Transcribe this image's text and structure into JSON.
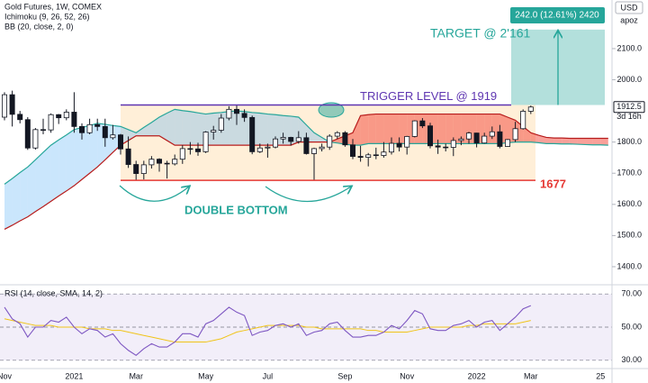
{
  "chart_data": {
    "type": "candlestick",
    "title": "Gold Futures, 1W, COMEX",
    "indicators": [
      "Ichimoku (9, 26, 52, 26)",
      "BB (20, close, 2, 0)"
    ],
    "currency": "USD",
    "scale_mode": "apoz",
    "categories": [
      "Nov",
      null,
      null,
      null,
      null,
      null,
      null,
      null,
      null,
      "2021",
      null,
      null,
      null,
      null,
      null,
      null,
      null,
      "Mar",
      null,
      null,
      null,
      null,
      null,
      null,
      null,
      null,
      "May",
      null,
      null,
      null,
      null,
      null,
      null,
      null,
      "Jul",
      null,
      null,
      null,
      null,
      null,
      null,
      null,
      null,
      null,
      "Sep",
      null,
      null,
      null,
      null,
      null,
      null,
      null,
      "Nov",
      null,
      null,
      null,
      null,
      null,
      null,
      null,
      null,
      "2022",
      null,
      null,
      null,
      null,
      null,
      null,
      "Mar",
      null,
      null,
      null,
      null,
      null,
      null,
      null,
      null,
      "25",
      null
    ],
    "open": [
      1880,
      1952,
      1889,
      1872,
      1781,
      1840,
      1839,
      1888,
      1878,
      1896,
      1850,
      1830,
      1856,
      1850,
      1814,
      1823,
      1778,
      1728,
      1699,
      1727,
      1745,
      1732,
      1730,
      1745,
      1779,
      1778,
      1769,
      1832,
      1838,
      1877,
      1905,
      1892,
      1879,
      1769,
      1781,
      1784,
      1810,
      1815,
      1802,
      1814,
      1763,
      1779,
      1784,
      1819,
      1830,
      1791,
      1754,
      1751,
      1759,
      1757,
      1768,
      1796,
      1784,
      1818,
      1868,
      1852,
      1788,
      1784,
      1783,
      1805,
      1810,
      1829,
      1797,
      1819,
      1833,
      1786,
      1808,
      1843,
      1899,
      null,
      null,
      null,
      null,
      null,
      null,
      null,
      null,
      null,
      null
    ],
    "high": [
      1960,
      1965,
      1900,
      1880,
      1845,
      1875,
      1892,
      1890,
      1905,
      1960,
      1860,
      1875,
      1875,
      1875,
      1855,
      1826,
      1818,
      1740,
      1740,
      1755,
      1748,
      1740,
      1760,
      1790,
      1800,
      1798,
      1835,
      1852,
      1890,
      1915,
      1920,
      1905,
      1885,
      1795,
      1795,
      1818,
      1830,
      1817,
      1835,
      1830,
      1782,
      1795,
      1825,
      1835,
      1835,
      1810,
      1788,
      1765,
      1782,
      1800,
      1815,
      1815,
      1820,
      1870,
      1877,
      1862,
      1808,
      1795,
      1815,
      1818,
      1833,
      1830,
      1830,
      1850,
      1855,
      1810,
      1865,
      1905,
      1917,
      null,
      null,
      null,
      null,
      null,
      null,
      null,
      null,
      null,
      null
    ],
    "low": [
      1870,
      1850,
      1860,
      1775,
      1776,
      1825,
      1830,
      1858,
      1870,
      1830,
      1808,
      1825,
      1836,
      1785,
      1808,
      1760,
      1717,
      1677,
      1680,
      1715,
      1705,
      1683,
      1725,
      1730,
      1760,
      1756,
      1765,
      1808,
      1830,
      1870,
      1855,
      1865,
      1761,
      1765,
      1750,
      1780,
      1795,
      1789,
      1795,
      1760,
      1677,
      1770,
      1775,
      1810,
      1785,
      1745,
      1737,
      1722,
      1745,
      1750,
      1760,
      1770,
      1760,
      1815,
      1845,
      1780,
      1762,
      1770,
      1755,
      1790,
      1795,
      1783,
      1795,
      1810,
      1780,
      1785,
      1800,
      1840,
      1890,
      null,
      null,
      null,
      null,
      null,
      null,
      null,
      null,
      null,
      null
    ],
    "close": [
      1952,
      1889,
      1872,
      1781,
      1840,
      1839,
      1888,
      1878,
      1896,
      1850,
      1830,
      1856,
      1850,
      1814,
      1823,
      1778,
      1728,
      1699,
      1727,
      1745,
      1732,
      1730,
      1745,
      1779,
      1778,
      1769,
      1832,
      1838,
      1877,
      1905,
      1892,
      1879,
      1769,
      1781,
      1784,
      1810,
      1815,
      1802,
      1814,
      1763,
      1779,
      1784,
      1819,
      1830,
      1791,
      1754,
      1751,
      1759,
      1757,
      1768,
      1796,
      1784,
      1818,
      1868,
      1852,
      1788,
      1784,
      1783,
      1805,
      1810,
      1829,
      1797,
      1819,
      1833,
      1786,
      1808,
      1843,
      1899,
      1912.5,
      null,
      null,
      null,
      null,
      null,
      null,
      null,
      null,
      null,
      null
    ],
    "up_color": "#ffffff",
    "down_color": "#131722",
    "ylim": [
      1342,
      2256
    ],
    "yticks": [
      {
        "value": 1400,
        "label": "1400.0"
      },
      {
        "value": 1500,
        "label": "1500.0"
      },
      {
        "value": 1600,
        "label": "1600.0"
      },
      {
        "value": 1700,
        "label": "1700.0"
      },
      {
        "value": 1800,
        "label": "1800.0"
      },
      {
        "value": 2000,
        "label": "2000.0"
      },
      {
        "value": 2100,
        "label": "2100.0"
      }
    ],
    "last_price": {
      "value": 1912.5,
      "label": "1912.5",
      "countdown": "3d 16h"
    },
    "cloud": {
      "span_a": [
        1665,
        1683,
        1702,
        1720,
        1743,
        1767,
        1790,
        1807,
        1823,
        1840,
        1847,
        1853,
        1860,
        1857,
        1853,
        1850,
        1840,
        1830,
        1847,
        1863,
        1880,
        1893,
        1905,
        1901,
        1898,
        1894,
        1890,
        1893,
        1895,
        1898,
        1900,
        1898,
        1895,
        1893,
        1890,
        1888,
        1885,
        1883,
        1880,
        1855,
        1830,
        1815,
        1800,
        1797,
        1793,
        1790,
        1790,
        1795,
        1795,
        1795,
        1795,
        1795,
        1795,
        1795,
        1795,
        1795,
        1795,
        1795,
        1795,
        1795,
        1795,
        1795,
        1795,
        1795,
        1795,
        1798,
        1800,
        1800,
        1800,
        1798,
        1795,
        1795,
        1794,
        1794,
        1793,
        1792,
        1791,
        1791,
        1790
      ],
      "span_b": [
        1520,
        1533,
        1547,
        1560,
        1577,
        1593,
        1610,
        1627,
        1643,
        1660,
        1680,
        1700,
        1720,
        1743,
        1767,
        1790,
        1805,
        1820,
        1820,
        1820,
        1820,
        1805,
        1790,
        1790,
        1790,
        1790,
        1790,
        1790,
        1790,
        1790,
        1790,
        1790,
        1790,
        1790,
        1790,
        1790,
        1790,
        1790,
        1800,
        1800,
        1800,
        1800,
        1800,
        1810,
        1820,
        1830,
        1885,
        1888,
        1890,
        1890,
        1890,
        1890,
        1890,
        1890,
        1890,
        1890,
        1890,
        1890,
        1890,
        1890,
        1890,
        1890,
        1890,
        1890,
        1890,
        1880,
        1870,
        1850,
        1830,
        1822,
        1815,
        1813,
        1813,
        1812,
        1812,
        1812,
        1812,
        1812,
        1812
      ],
      "span_a_color": "#26a69a",
      "span_b_color": "#b71c1c",
      "bull_fill": "rgba(66,165,245,0.28)",
      "bear_fill": "rgba(244,67,54,0.5)"
    },
    "levels": [
      {
        "value": 1919,
        "label": "TRIGGER LEVEL @ 1919",
        "color": "#5e35b1"
      },
      {
        "value": 1677,
        "label": "1677",
        "color": "#e53935"
      }
    ],
    "target": {
      "from": 1919,
      "to": 2161,
      "label": "TARGET @ 2'161",
      "measure": "242.0 (12.61%) 2420",
      "color": "#26a69a"
    },
    "pattern_label": "DOUBLE BOTTOM",
    "rsi": {
      "title": "RSI (14, close, SMA, 14, 2)",
      "values": [
        62,
        55,
        52,
        44,
        50,
        50,
        54,
        53,
        56,
        50,
        46,
        49,
        48,
        44,
        46,
        40,
        36,
        33,
        37,
        40,
        38,
        38,
        41,
        46,
        46,
        44,
        52,
        54,
        58,
        62,
        59,
        57,
        45,
        47,
        48,
        51,
        52,
        50,
        52,
        45,
        47,
        48,
        52,
        53,
        48,
        44,
        44,
        45,
        45,
        47,
        51,
        49,
        54,
        60,
        58,
        49,
        48,
        48,
        51,
        52,
        54,
        50,
        53,
        54,
        48,
        52,
        56,
        61,
        63,
        null,
        null,
        null,
        null,
        null,
        null,
        null,
        null,
        null,
        null
      ],
      "sma": [
        55,
        54,
        53,
        52,
        51,
        51,
        51,
        50,
        50,
        50,
        50,
        49,
        49,
        49,
        48,
        48,
        47,
        46,
        45,
        44,
        43,
        42,
        41,
        41,
        41,
        41,
        41,
        42,
        43,
        45,
        47,
        48,
        49,
        50,
        51,
        51,
        51,
        51,
        51,
        50,
        50,
        49,
        49,
        49,
        49,
        49,
        49,
        48,
        48,
        47,
        47,
        47,
        47,
        48,
        49,
        50,
        50,
        50,
        50,
        50,
        51,
        51,
        52,
        52,
        52,
        52,
        52,
        53,
        54,
        null,
        null,
        null,
        null,
        null,
        null,
        null,
        null,
        null,
        null
      ],
      "color": "#7e57c2",
      "sma_color": "#f0c419",
      "ylim": [
        25,
        75
      ],
      "yticks": [
        {
          "value": 70,
          "label": "70.00"
        },
        {
          "value": 50,
          "label": "50.00"
        },
        {
          "value": 30,
          "label": "30.00"
        }
      ]
    }
  }
}
